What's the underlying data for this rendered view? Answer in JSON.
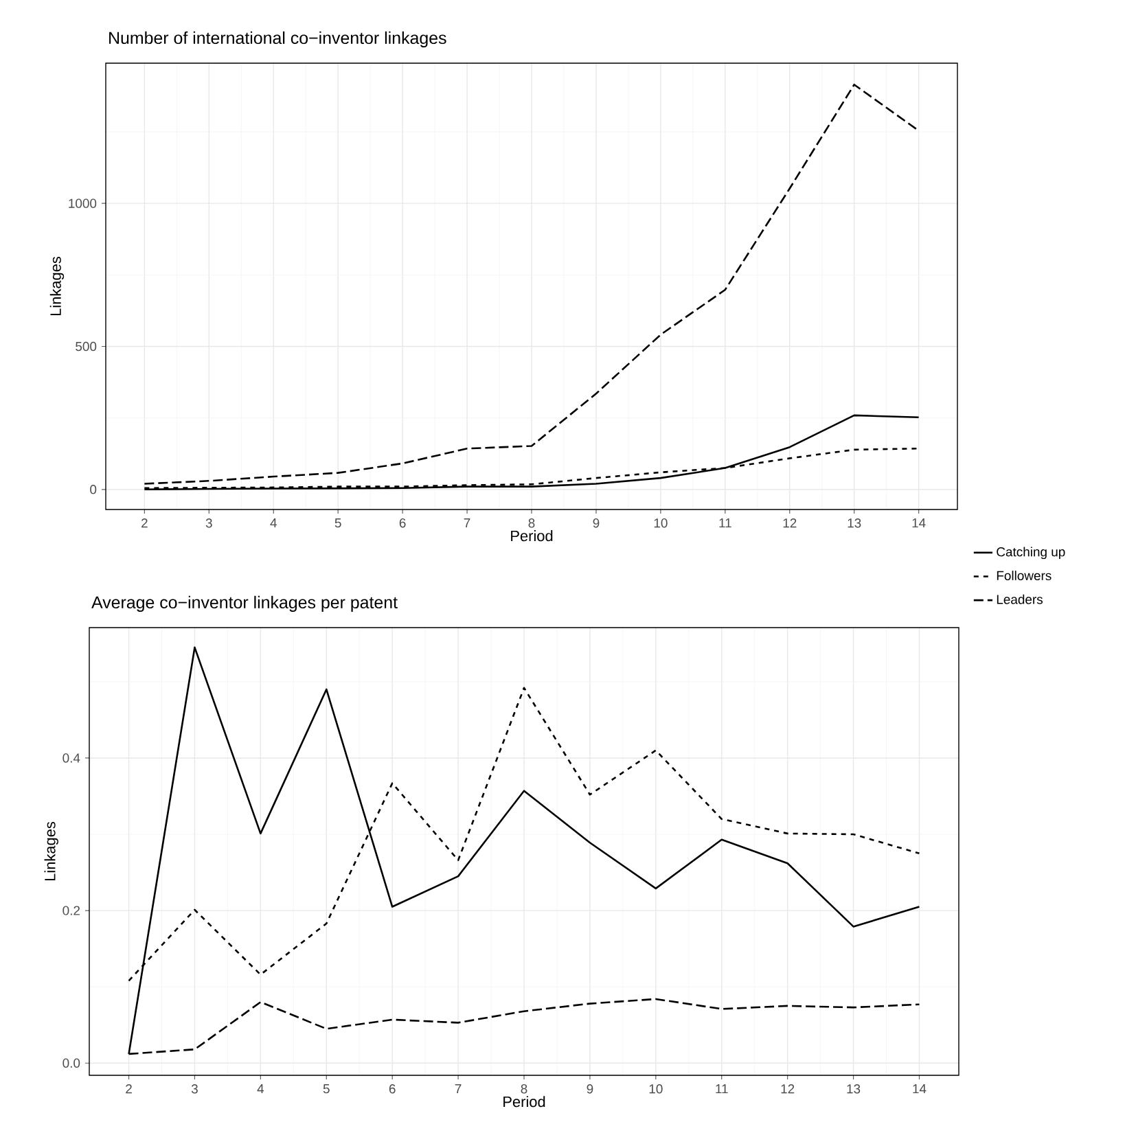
{
  "chart_data": [
    {
      "type": "line",
      "title": "Number of international co−inventor linkages",
      "xlabel": "Period",
      "ylabel": "Linkages",
      "x": [
        2,
        3,
        4,
        5,
        6,
        7,
        8,
        9,
        10,
        11,
        12,
        13,
        14
      ],
      "series": [
        {
          "name": "Catching up",
          "color": "#000000",
          "line_style": "solid",
          "values": [
            0,
            2,
            3,
            4,
            5,
            10,
            10,
            20,
            40,
            75,
            148,
            259,
            252
          ]
        },
        {
          "name": "Followers",
          "color": "#000000",
          "line_style": "dotted",
          "values": [
            5,
            6,
            7,
            10,
            10,
            15,
            18,
            40,
            60,
            75,
            109,
            139,
            143
          ]
        },
        {
          "name": "Leaders",
          "color": "#000000",
          "line_style": "dashed",
          "values": [
            20,
            30,
            45,
            58,
            91,
            143,
            152,
            335,
            541,
            698,
            1052,
            1415,
            1254
          ]
        }
      ],
      "xlim": [
        1.4,
        14.6
      ],
      "ylim": [
        -70,
        1490
      ],
      "xticks": [
        2,
        {
          "value": 2.5,
          "label": null
        },
        3,
        {
          "value": 3.5,
          "label": null
        },
        4,
        {
          "value": 4.5,
          "label": null
        },
        5,
        {
          "value": 5.5,
          "label": null
        },
        6,
        {
          "value": 6.5,
          "label": null
        },
        7,
        {
          "value": 7.5,
          "label": null
        },
        8,
        {
          "value": 8.5,
          "label": null
        },
        9,
        {
          "value": 9.5,
          "label": null
        },
        10,
        {
          "value": 10.5,
          "label": null
        },
        11,
        {
          "value": 11.5,
          "label": null
        },
        12,
        {
          "value": 12.5,
          "label": null
        },
        13,
        {
          "value": 13.5,
          "label": null
        },
        14
      ],
      "yticks": [
        0,
        {
          "value": 250,
          "label": null
        },
        500,
        {
          "value": 750,
          "label": null
        },
        1000,
        {
          "value": 1250,
          "label": null
        }
      ],
      "grid": true,
      "legend": "right",
      "marker": "none"
    },
    {
      "type": "line",
      "title": "Average co−inventor linkages per patent",
      "xlabel": "Period",
      "ylabel": "Linkages",
      "x": [
        2,
        3,
        4,
        5,
        6,
        7,
        8,
        9,
        10,
        11,
        12,
        13,
        14
      ],
      "series": [
        {
          "color": "#000000",
          "line_style": "solid",
          "values": [
            0.012,
            0.545,
            0.301,
            0.49,
            0.205,
            0.245,
            0.357,
            0.289,
            0.229,
            0.293,
            0.262,
            0.179,
            0.205
          ]
        },
        {
          "color": "#000000",
          "line_style": "dotted",
          "values": [
            0.108,
            0.201,
            0.116,
            0.183,
            0.367,
            0.266,
            0.492,
            0.352,
            0.41,
            0.32,
            0.301,
            0.3,
            0.275
          ]
        },
        {
          "color": "#000000",
          "line_style": "dashed",
          "values": [
            0.012,
            0.018,
            0.08,
            0.045,
            0.057,
            0.053,
            0.068,
            0.078,
            0.084,
            0.071,
            0.075,
            0.073,
            0.077
          ]
        }
      ],
      "xlim": [
        1.4,
        14.6
      ],
      "ylim": [
        -0.016,
        0.571
      ],
      "xticks": [
        2,
        {
          "value": 2.5,
          "label": null
        },
        3,
        {
          "value": 3.5,
          "label": null
        },
        4,
        {
          "value": 4.5,
          "label": null
        },
        5,
        {
          "value": 5.5,
          "label": null
        },
        6,
        {
          "value": 6.5,
          "label": null
        },
        7,
        {
          "value": 7.5,
          "label": null
        },
        8,
        {
          "value": 8.5,
          "label": null
        },
        9,
        {
          "value": 9.5,
          "label": null
        },
        10,
        {
          "value": 10.5,
          "label": null
        },
        11,
        {
          "value": 11.5,
          "label": null
        },
        12,
        {
          "value": 12.5,
          "label": null
        },
        13,
        {
          "value": 13.5,
          "label": null
        },
        14
      ],
      "yticks": [
        {
          "value": 0,
          "label": "0.0"
        },
        {
          "value": 0.1,
          "label": null
        },
        {
          "value": 0.2,
          "label": "0.2"
        },
        {
          "value": 0.3,
          "label": null
        },
        {
          "value": 0.4,
          "label": "0.4"
        },
        {
          "value": 0.5,
          "label": null
        }
      ],
      "grid": true,
      "marker": "none"
    }
  ]
}
